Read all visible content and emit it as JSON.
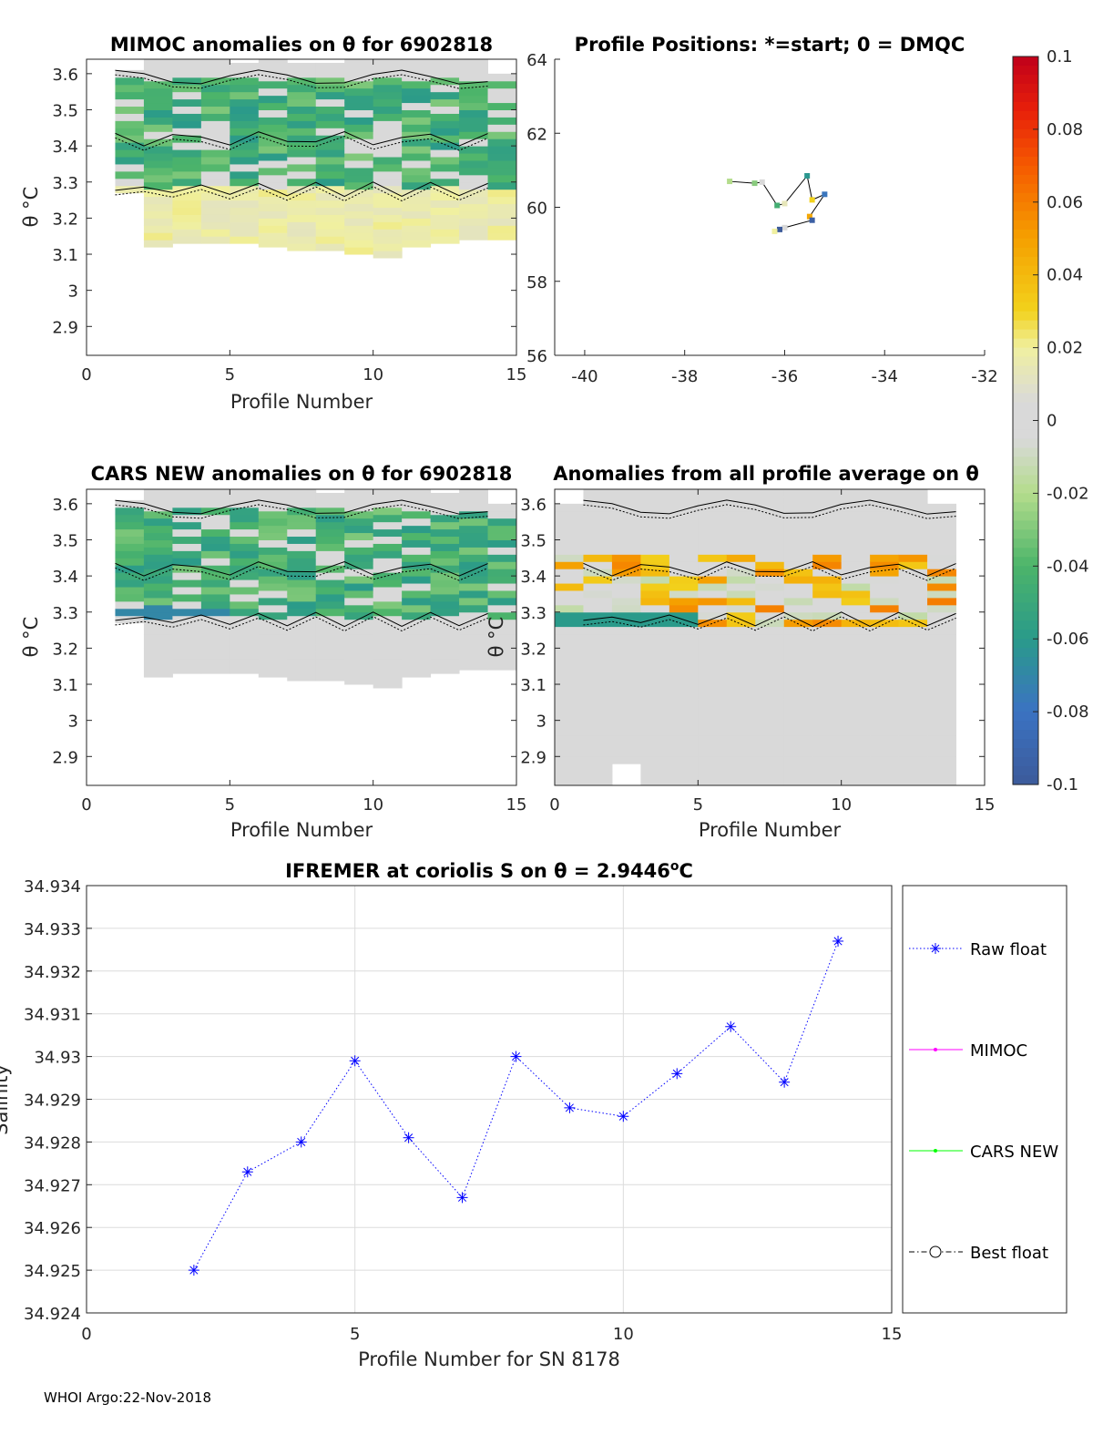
{
  "footer": {
    "text": "WHOI Argo:22-Nov-2018"
  },
  "colorbar": {
    "min": -0.1,
    "max": 0.1,
    "ticks": [
      "0.1",
      "0.08",
      "0.06",
      "0.04",
      "0.02",
      "0",
      "-0.02",
      "-0.04",
      "-0.06",
      "-0.08",
      "-0.1"
    ]
  },
  "chart_data": [
    {
      "id": "mimoc",
      "type": "heatmap",
      "title": "MIMOC anomalies on θ  for 6902818",
      "xlabel": "Profile Number",
      "ylabel": "θ °C",
      "xlim": [
        0,
        15
      ],
      "ylim": [
        2.82,
        3.64
      ],
      "xticks": [
        "0",
        "5",
        "10",
        "15"
      ],
      "yticks": [
        "2.9",
        "3",
        "3.1",
        "3.2",
        "3.3",
        "3.4",
        "3.5",
        "3.6"
      ],
      "description_values": "anomaly range approx -0.06 to 0.02"
    },
    {
      "id": "positions",
      "type": "scatter",
      "title": "Profile Positions: *=start; 0 = DMQC",
      "xlim": [
        -40.6,
        -32
      ],
      "ylim": [
        56,
        64
      ],
      "xticks": [
        "-40",
        "-38",
        "-36",
        "-34",
        "-32"
      ],
      "yticks": [
        "56",
        "58",
        "60",
        "62",
        "64"
      ],
      "lon": [
        -37.1,
        -36.6,
        -36.45,
        -36.15,
        -36.0,
        -35.55,
        -35.45,
        -35.2,
        -35.5,
        -35.45,
        -36.0,
        -36.1,
        -36.2
      ],
      "lat": [
        60.7,
        60.65,
        60.68,
        60.05,
        60.1,
        60.85,
        60.2,
        60.35,
        59.75,
        59.65,
        59.45,
        59.4,
        59.35
      ]
    },
    {
      "id": "cars",
      "type": "heatmap",
      "title": "CARS NEW anomalies on θ for 6902818",
      "xlabel": "Profile Number",
      "ylabel": "θ °C",
      "xlim": [
        0,
        15
      ],
      "ylim": [
        2.82,
        3.64
      ],
      "xticks": [
        "0",
        "5",
        "10",
        "15"
      ],
      "yticks": [
        "2.9",
        "3",
        "3.1",
        "3.2",
        "3.3",
        "3.4",
        "3.5",
        "3.6"
      ]
    },
    {
      "id": "avg",
      "type": "heatmap",
      "title": "Anomalies from all profile average on θ",
      "xlabel": "Profile Number",
      "ylabel": "θ °C",
      "xlim": [
        0,
        15
      ],
      "ylim": [
        2.82,
        3.64
      ],
      "xticks": [
        "0",
        "5",
        "10",
        "15"
      ],
      "yticks": [
        "2.9",
        "3",
        "3.1",
        "3.2",
        "3.3",
        "3.4",
        "3.5",
        "3.6"
      ]
    },
    {
      "id": "salinity",
      "type": "line",
      "title": "IFREMER at coriolis S on θ = 2.9446",
      "title_sup": "o",
      "title_unit": "C",
      "xlabel": "Profile Number for SN 8178",
      "ylabel": "Salinity",
      "xlim": [
        0,
        15
      ],
      "ylim": [
        34.924,
        34.934
      ],
      "xticks": [
        "0",
        "5",
        "10",
        "15"
      ],
      "yticks": [
        "34.924",
        "34.925",
        "34.926",
        "34.927",
        "34.928",
        "34.929",
        "34.93",
        "34.931",
        "34.932",
        "34.933",
        "34.934"
      ],
      "series": [
        {
          "name": "Raw float",
          "color": "#0000ff",
          "x": [
            2,
            3,
            4,
            5,
            6,
            7,
            8,
            9,
            10,
            11,
            12,
            13,
            14
          ],
          "y": [
            34.925,
            34.9273,
            34.928,
            34.9299,
            34.9281,
            34.9267,
            34.93,
            34.9288,
            34.9286,
            34.9296,
            34.9307,
            34.9294,
            34.9327
          ]
        },
        {
          "name": "MIMOC",
          "color": "#ff00ff",
          "x": [],
          "y": []
        },
        {
          "name": "CARS NEW",
          "color": "#00ff00",
          "x": [],
          "y": []
        },
        {
          "name": "Best float",
          "color": "#000000",
          "x": [],
          "y": []
        }
      ]
    }
  ]
}
